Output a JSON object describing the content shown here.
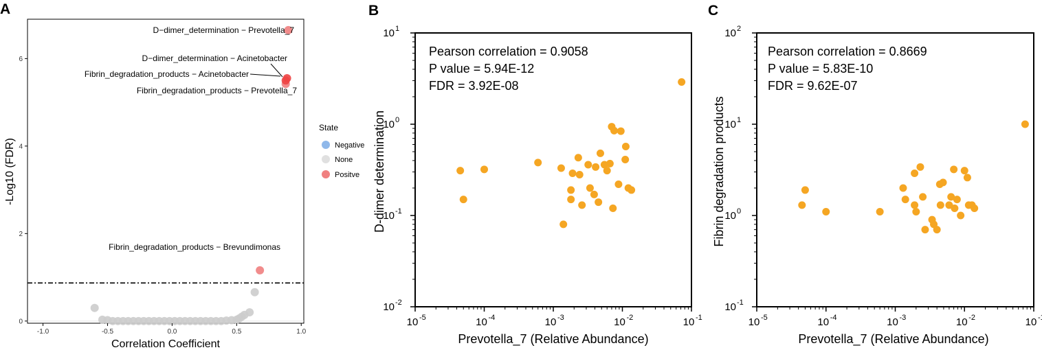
{
  "panels": {
    "a": "A",
    "b": "B",
    "c": "C"
  },
  "colors": {
    "positive": "#f08080",
    "negative": "#8fb8ea",
    "none": "#cccccc",
    "highlight": "#ee4444",
    "orange": "#f5a623"
  },
  "chart_data": [
    {
      "id": "A",
      "type": "scatter",
      "title": "",
      "xlabel": "Correlation Coefficient",
      "ylabel": "-Log10 (FDR)",
      "xlim": [
        -1.12,
        1.02
      ],
      "ylim": [
        -0.05,
        6.9
      ],
      "xticks": [
        {
          "v": -1.0,
          "label": "-1.0"
        },
        {
          "v": -0.5,
          "label": "-0.5"
        },
        {
          "v": 0.0,
          "label": "0.0"
        },
        {
          "v": 0.5,
          "label": "0.5"
        },
        {
          "v": 1.0,
          "label": "1.0"
        }
      ],
      "yticks": [
        {
          "v": 0,
          "label": "0"
        },
        {
          "v": 2,
          "label": "2"
        },
        {
          "v": 4,
          "label": "4"
        },
        {
          "v": 6,
          "label": "6"
        }
      ],
      "threshold": 0.87,
      "legend": {
        "title": "State",
        "entries": [
          {
            "label": "Negative",
            "color": "#8fb8ea"
          },
          {
            "label": "None",
            "color": "#e0e0e0"
          },
          {
            "label": "Positve",
            "color": "#f08080"
          }
        ]
      },
      "series": [
        {
          "name": "None",
          "color": "#cccccc",
          "points": [
            [
              -0.6,
              0.3
            ],
            [
              -0.54,
              0.03
            ],
            [
              -0.5,
              0.02
            ],
            [
              -0.46,
              0.0
            ],
            [
              -0.42,
              0.0
            ],
            [
              -0.38,
              0.0
            ],
            [
              -0.34,
              0.0
            ],
            [
              -0.3,
              0.0
            ],
            [
              -0.26,
              0.0
            ],
            [
              -0.22,
              0.0
            ],
            [
              -0.18,
              0.0
            ],
            [
              -0.14,
              0.0
            ],
            [
              -0.1,
              0.0
            ],
            [
              -0.06,
              0.0
            ],
            [
              -0.02,
              0.0
            ],
            [
              0.02,
              0.0
            ],
            [
              0.06,
              0.0
            ],
            [
              0.1,
              0.0
            ],
            [
              0.14,
              0.0
            ],
            [
              0.18,
              0.0
            ],
            [
              0.22,
              0.0
            ],
            [
              0.26,
              0.0
            ],
            [
              0.3,
              0.0
            ],
            [
              0.34,
              0.0
            ],
            [
              0.38,
              0.0
            ],
            [
              0.42,
              0.01
            ],
            [
              0.46,
              0.02
            ],
            [
              0.5,
              0.03
            ],
            [
              0.52,
              0.06
            ],
            [
              0.54,
              0.1
            ],
            [
              0.56,
              0.14
            ],
            [
              0.6,
              0.2
            ],
            [
              0.64,
              0.66
            ]
          ]
        },
        {
          "name": "Positve",
          "color": "#f08080",
          "points": [
            [
              0.9,
              6.65
            ],
            [
              0.88,
              5.42
            ],
            [
              0.68,
              1.16
            ]
          ]
        },
        {
          "name": "Positve-highlight",
          "color": "#ee4444",
          "points": [
            [
              0.89,
              5.55
            ],
            [
              0.88,
              5.5
            ]
          ]
        }
      ],
      "annotations": [
        {
          "text": "D−dimer_determination − Prevotella_7"
        },
        {
          "text": "D−dimer_determination − Acinetobacter"
        },
        {
          "text": "Fibrin_degradation_products − Acinetobacter"
        },
        {
          "text": "Fibrin_degradation_products − Prevotella_7"
        },
        {
          "text": "Fibrin_degradation_products − Brevundimonas"
        }
      ]
    },
    {
      "id": "B",
      "type": "scatter",
      "scale": "log-log",
      "xlabel": "Prevotella_7 (Relative Abundance)",
      "ylabel": "D-dimer determination",
      "xlim_exp": [
        -5,
        -1
      ],
      "ylim_exp": [
        -2,
        1
      ],
      "xticks": [
        "10",
        "10",
        "10",
        "10",
        "10"
      ],
      "xtick_exps": [
        "-5",
        "-4",
        "-3",
        "-2",
        "-1"
      ],
      "yticks": [
        "10",
        "10",
        "10",
        "10"
      ],
      "ytick_exps": [
        "-2",
        "-1",
        "0",
        "1"
      ],
      "stats": [
        "Pearson correlation = 0.9058",
        "P value = 5.94E-12",
        "FDR = 3.92E-08"
      ],
      "color": "#f5a623",
      "points": [
        [
          4.5e-05,
          0.31
        ],
        [
          5e-05,
          0.15
        ],
        [
          0.0001,
          0.32
        ],
        [
          0.0006,
          0.38
        ],
        [
          0.0013,
          0.33
        ],
        [
          0.0014,
          0.08
        ],
        [
          0.0018,
          0.19
        ],
        [
          0.0018,
          0.15
        ],
        [
          0.0019,
          0.29
        ],
        [
          0.0023,
          0.43
        ],
        [
          0.0024,
          0.28
        ],
        [
          0.0026,
          0.13
        ],
        [
          0.0032,
          0.36
        ],
        [
          0.0034,
          0.2
        ],
        [
          0.0039,
          0.17
        ],
        [
          0.0041,
          0.34
        ],
        [
          0.0045,
          0.14
        ],
        [
          0.0048,
          0.48
        ],
        [
          0.0055,
          0.36
        ],
        [
          0.006,
          0.31
        ],
        [
          0.0066,
          0.37
        ],
        [
          0.007,
          0.94
        ],
        [
          0.0073,
          0.12
        ],
        [
          0.0076,
          0.85
        ],
        [
          0.0088,
          0.22
        ],
        [
          0.0095,
          0.84
        ],
        [
          0.011,
          0.41
        ],
        [
          0.0112,
          0.57
        ],
        [
          0.0122,
          0.2
        ],
        [
          0.0135,
          0.19
        ],
        [
          0.072,
          2.9
        ]
      ]
    },
    {
      "id": "C",
      "type": "scatter",
      "scale": "log-log",
      "xlabel": "Prevotella_7 (Relative Abundance)",
      "ylabel": "Fibrin degradation products",
      "xlim_exp": [
        -5,
        -1
      ],
      "ylim_exp": [
        -1,
        2
      ],
      "xticks": [
        "10",
        "10",
        "10",
        "10",
        "10"
      ],
      "xtick_exps": [
        "-5",
        "-4",
        "-3",
        "-2",
        "-1"
      ],
      "yticks": [
        "10",
        "10",
        "10",
        "10"
      ],
      "ytick_exps": [
        "-1",
        "0",
        "1",
        "2"
      ],
      "stats": [
        "Pearson correlation = 0.8669",
        "P value = 5.83E-10",
        "FDR = 9.62E-07"
      ],
      "color": "#f5a623",
      "points": [
        [
          4.5e-05,
          1.3
        ],
        [
          5e-05,
          1.9
        ],
        [
          0.0001,
          1.1
        ],
        [
          0.0006,
          1.1
        ],
        [
          0.0013,
          2.0
        ],
        [
          0.0014,
          1.5
        ],
        [
          0.0019,
          2.9
        ],
        [
          0.0019,
          1.3
        ],
        [
          0.002,
          1.1
        ],
        [
          0.0023,
          3.4
        ],
        [
          0.0025,
          1.6
        ],
        [
          0.0027,
          0.7
        ],
        [
          0.0034,
          0.9
        ],
        [
          0.0036,
          0.8
        ],
        [
          0.004,
          0.7
        ],
        [
          0.0044,
          2.2
        ],
        [
          0.0045,
          1.3
        ],
        [
          0.0049,
          2.3
        ],
        [
          0.006,
          1.3
        ],
        [
          0.0064,
          1.6
        ],
        [
          0.007,
          3.2
        ],
        [
          0.0072,
          1.2
        ],
        [
          0.0078,
          1.5
        ],
        [
          0.0088,
          1.0
        ],
        [
          0.01,
          3.1
        ],
        [
          0.011,
          2.6
        ],
        [
          0.0115,
          1.3
        ],
        [
          0.0128,
          1.3
        ],
        [
          0.0139,
          1.2
        ],
        [
          0.075,
          10.0
        ]
      ]
    }
  ]
}
